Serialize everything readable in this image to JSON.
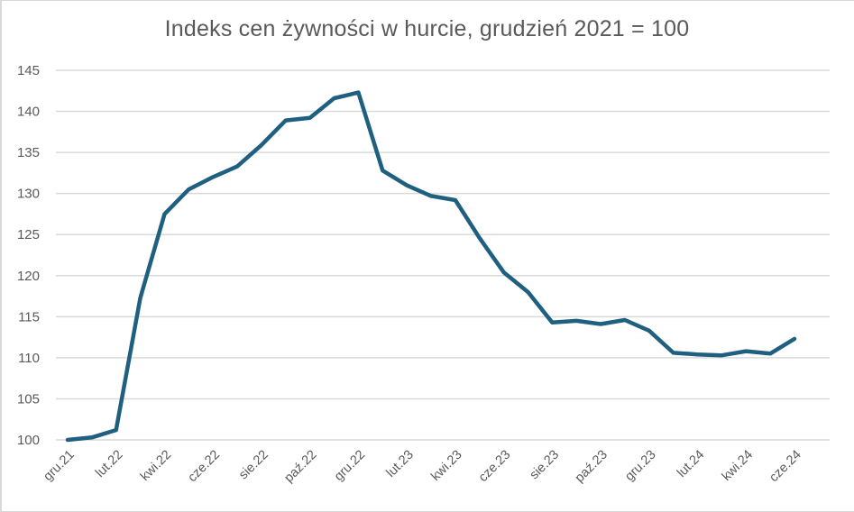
{
  "chart_data": {
    "type": "line",
    "title": "Indeks cen żywności w hurcie, grudzień 2021 = 100",
    "xlabel": "",
    "ylabel": "",
    "ylim": [
      100,
      145
    ],
    "yticks": [
      100,
      105,
      110,
      115,
      120,
      125,
      130,
      135,
      140,
      145
    ],
    "grid": true,
    "legend": "none",
    "x_tick_labels": [
      "gru.21",
      "lut.22",
      "kwi.22",
      "cze.22",
      "sie.22",
      "paź.22",
      "gru.22",
      "lut.23",
      "kwi.23",
      "cze.23",
      "sie.23",
      "paź.23",
      "gru.23",
      "lut.24",
      "kwi.24",
      "cze.24"
    ],
    "x": [
      "gru.21",
      "sty.22",
      "lut.22",
      "mar.22",
      "kwi.22",
      "maj.22",
      "cze.22",
      "lip.22",
      "sie.22",
      "wrz.22",
      "paź.22",
      "lis.22",
      "gru.22",
      "sty.23",
      "lut.23",
      "mar.23",
      "kwi.23",
      "maj.23",
      "cze.23",
      "lip.23",
      "sie.23",
      "wrz.23",
      "paź.23",
      "lis.23",
      "gru.23",
      "sty.24",
      "lut.24",
      "mar.24",
      "kwi.24",
      "maj.24",
      "cze.24"
    ],
    "series": [
      {
        "name": "Indeks cen żywności w hurcie",
        "color": "#1f5f7f",
        "values": [
          100.0,
          100.3,
          101.2,
          117.3,
          127.5,
          130.5,
          132.0,
          133.3,
          135.9,
          138.9,
          139.2,
          141.6,
          142.3,
          132.8,
          131.0,
          129.7,
          129.2,
          124.6,
          120.4,
          118.0,
          114.3,
          114.5,
          114.1,
          114.6,
          113.3,
          110.6,
          110.4,
          110.3,
          110.8,
          110.5,
          112.3
        ]
      }
    ]
  },
  "style": {
    "line_color": "#1f5f7f",
    "grid_color": "#d9d9d9",
    "text_color": "#595959"
  }
}
